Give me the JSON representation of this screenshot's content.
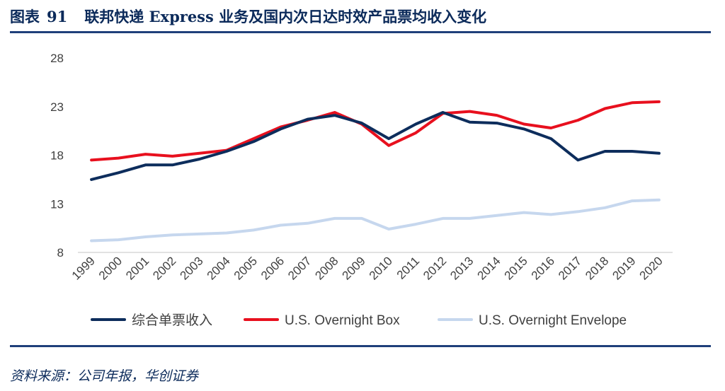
{
  "header": {
    "label": "图表",
    "number": "91",
    "text": "联邦快递 Express 业务及国内次日达时效产品票均收入变化"
  },
  "source": "资料来源：公司年报，华创证券",
  "colors": {
    "series1": "#0d2d5c",
    "series2": "#e8101e",
    "series3": "#c6d7ee",
    "axis": "#d9d9d9",
    "rule": "#1f3f7a"
  },
  "chart_data": {
    "type": "line",
    "title": "",
    "xlabel": "",
    "ylabel": "",
    "ylim": [
      8,
      28
    ],
    "yticks": [
      "8",
      "13",
      "18",
      "23",
      "28"
    ],
    "grid": false,
    "legend_position": "bottom",
    "x": [
      "1999",
      "2000",
      "2001",
      "2002",
      "2003",
      "2004",
      "2005",
      "2006",
      "2007",
      "2008",
      "2009",
      "2010",
      "2011",
      "2012",
      "2013",
      "2014",
      "2015",
      "2016",
      "2017",
      "2018",
      "2019",
      "2020"
    ],
    "series": [
      {
        "name": "综合单票收入",
        "values": [
          15.5,
          16.2,
          17.0,
          17.0,
          17.6,
          18.4,
          19.4,
          20.7,
          21.7,
          22.1,
          21.3,
          19.7,
          21.2,
          22.4,
          21.4,
          21.3,
          20.7,
          19.7,
          17.5,
          18.4,
          18.4,
          18.2
        ]
      },
      {
        "name": "U.S. Overnight Box",
        "values": [
          17.5,
          17.7,
          18.1,
          17.9,
          18.2,
          18.5,
          19.7,
          20.9,
          21.6,
          22.4,
          21.2,
          19.0,
          20.3,
          22.3,
          22.5,
          22.1,
          21.2,
          20.8,
          21.6,
          22.8,
          23.4,
          23.5
        ]
      },
      {
        "name": "U.S. Overnight Envelope",
        "values": [
          9.2,
          9.3,
          9.6,
          9.8,
          9.9,
          10.0,
          10.3,
          10.8,
          11.0,
          11.5,
          11.5,
          10.4,
          10.9,
          11.5,
          11.5,
          11.8,
          12.1,
          11.9,
          12.2,
          12.6,
          13.3,
          13.4
        ]
      }
    ]
  }
}
